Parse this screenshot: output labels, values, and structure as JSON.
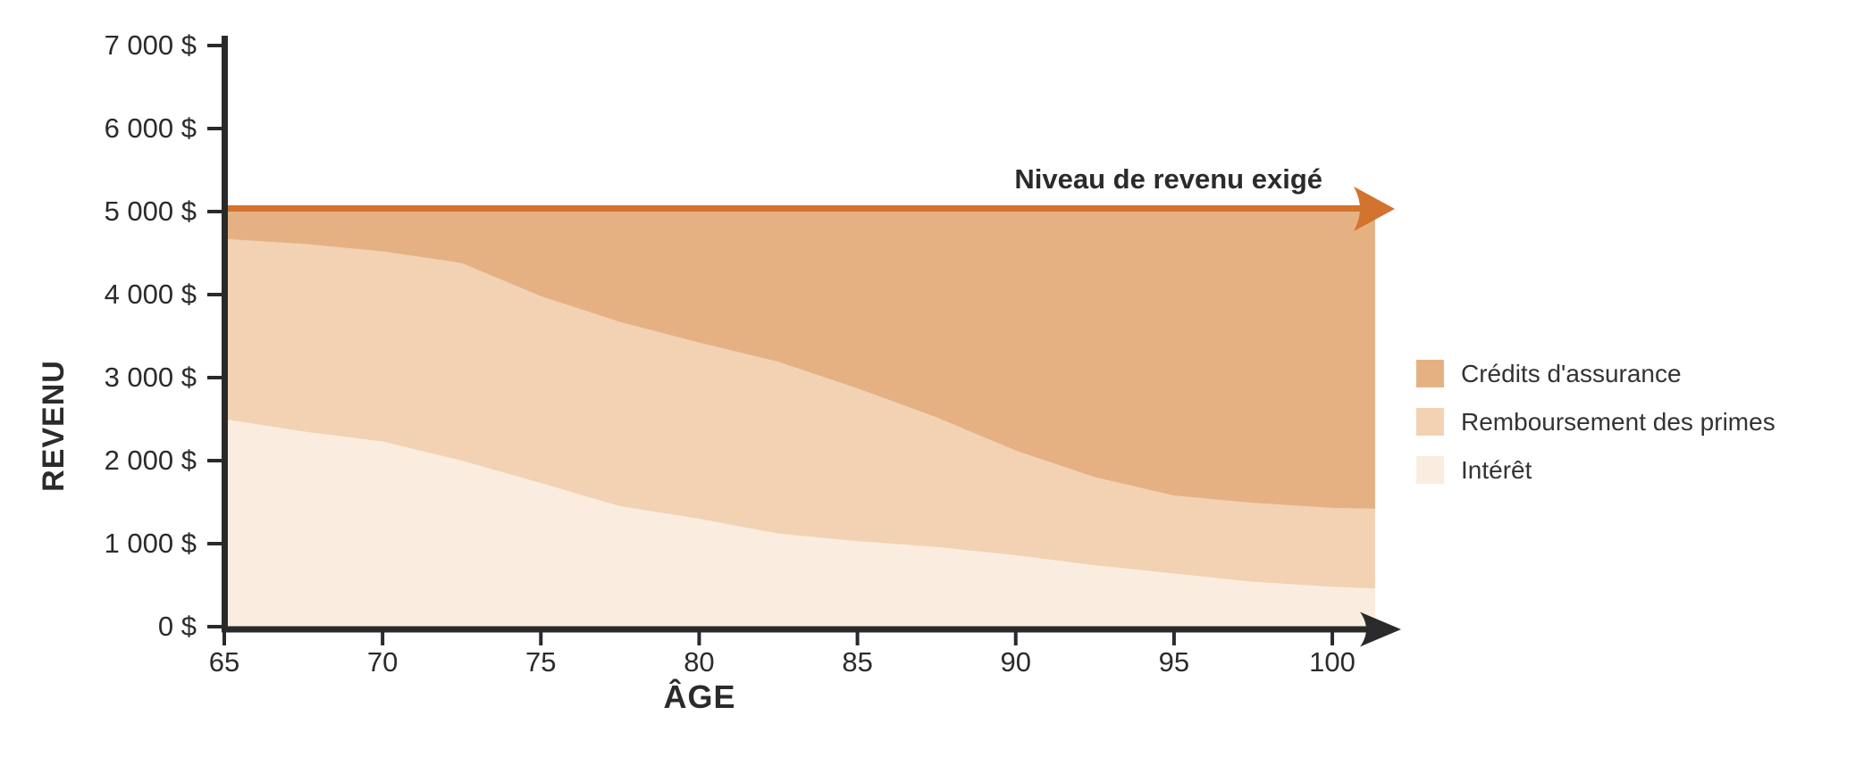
{
  "chart_data": {
    "type": "area",
    "stacked": true,
    "title": "",
    "xlabel": "ÂGE",
    "ylabel": "REVENU",
    "xlim": [
      65,
      101.35
    ],
    "ylim": [
      0,
      7000
    ],
    "grid": false,
    "x": [
      65,
      67.5,
      70,
      72.5,
      75,
      77.5,
      80,
      82.5,
      85,
      87.5,
      90,
      92.5,
      95,
      97.5,
      100,
      101.35
    ],
    "series": [
      {
        "name": "Intérêt",
        "color": "#FAEDDF",
        "values": [
          2500,
          2350,
          2230,
          2000,
          1730,
          1450,
          1300,
          1120,
          1030,
          960,
          860,
          740,
          640,
          540,
          480,
          460
        ]
      },
      {
        "name": "Remboursement des primes",
        "color": "#F2D2B3",
        "values": [
          2170,
          2260,
          2290,
          2380,
          2250,
          2220,
          2120,
          2070,
          1840,
          1560,
          1260,
          1060,
          940,
          950,
          950,
          960
        ]
      },
      {
        "name": "Crédits d'assurance",
        "color": "#E5B183",
        "values": [
          330,
          390,
          480,
          620,
          1020,
          1330,
          1580,
          1810,
          2130,
          2480,
          2880,
          3200,
          3420,
          3510,
          3570,
          3580
        ]
      }
    ],
    "required_level": {
      "value": 5000,
      "label": "Niveau de revenu exigé",
      "color": "#D2732E"
    },
    "x_ticks": [
      {
        "v": 65,
        "label": "65"
      },
      {
        "v": 70,
        "label": "70"
      },
      {
        "v": 75,
        "label": "75"
      },
      {
        "v": 80,
        "label": "80"
      },
      {
        "v": 85,
        "label": "85"
      },
      {
        "v": 90,
        "label": "90"
      },
      {
        "v": 95,
        "label": "95"
      },
      {
        "v": 100,
        "label": "100"
      }
    ],
    "y_ticks": [
      {
        "v": 0,
        "label": "0 $"
      },
      {
        "v": 1000,
        "label": "1 000 $"
      },
      {
        "v": 2000,
        "label": "2 000 $"
      },
      {
        "v": 3000,
        "label": "3 000 $"
      },
      {
        "v": 4000,
        "label": "4 000 $"
      },
      {
        "v": 5000,
        "label": "5 000 $"
      },
      {
        "v": 6000,
        "label": "6 000 $"
      },
      {
        "v": 7000,
        "label": "7 000 $"
      }
    ],
    "legend": {
      "position": "right",
      "items": [
        {
          "label": "Crédits d'assurance",
          "color": "#E5B183"
        },
        {
          "label": "Remboursement des primes",
          "color": "#F2D2B3"
        },
        {
          "label": "Intérêt",
          "color": "#FAEDDF"
        }
      ]
    }
  }
}
